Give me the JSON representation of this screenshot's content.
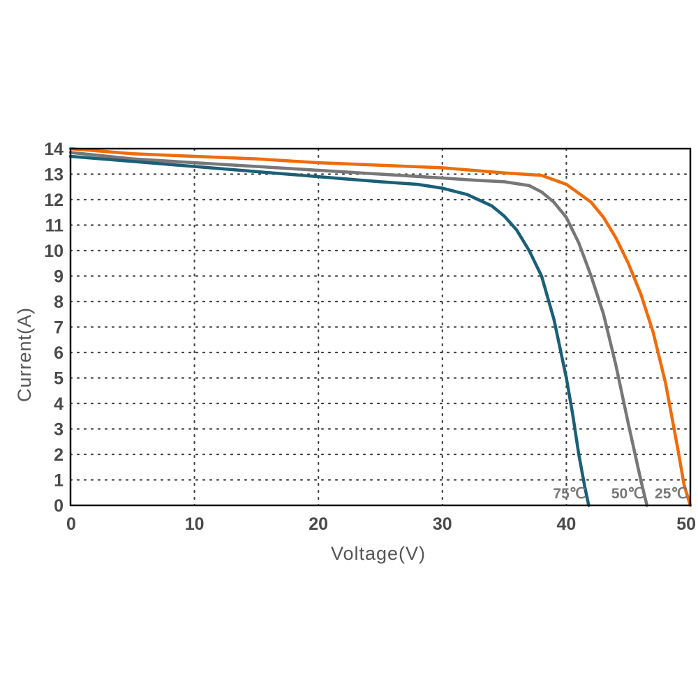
{
  "chart_data": {
    "type": "line",
    "title": "",
    "xlabel": "Voltage(V)",
    "ylabel": "Current(A)",
    "xlim": [
      0,
      50
    ],
    "ylim": [
      0,
      14
    ],
    "xticks": [
      0,
      10,
      20,
      30,
      40,
      50
    ],
    "yticks": [
      0,
      1,
      2,
      3,
      4,
      5,
      6,
      7,
      8,
      9,
      10,
      11,
      12,
      13,
      14
    ],
    "grid": true,
    "series": [
      {
        "name": "25℃",
        "color": "#ee6c0b",
        "x": [
          0,
          5,
          10,
          15,
          20,
          25,
          30,
          35,
          38,
          40,
          42,
          43,
          44,
          45,
          46,
          47,
          48,
          49,
          49.5,
          50
        ],
        "y": [
          14.0,
          13.8,
          13.7,
          13.6,
          13.45,
          13.35,
          13.25,
          13.05,
          12.95,
          12.6,
          11.9,
          11.3,
          10.5,
          9.5,
          8.3,
          6.8,
          4.8,
          2.2,
          0.8,
          0
        ]
      },
      {
        "name": "50℃",
        "color": "#777777",
        "x": [
          0,
          5,
          10,
          15,
          20,
          25,
          30,
          33,
          35,
          37,
          38,
          39,
          40,
          41,
          42,
          43,
          44,
          45,
          46,
          46.5
        ],
        "y": [
          13.85,
          13.6,
          13.45,
          13.3,
          13.15,
          13.0,
          12.85,
          12.75,
          12.7,
          12.55,
          12.3,
          11.9,
          11.3,
          10.3,
          9.0,
          7.5,
          5.5,
          3.2,
          1.0,
          0
        ]
      },
      {
        "name": "75℃",
        "color": "#1b5f77",
        "x": [
          0,
          5,
          10,
          15,
          20,
          25,
          28,
          30,
          32,
          34,
          35,
          36,
          37,
          38,
          39,
          40,
          40.5,
          41,
          41.5,
          41.8
        ],
        "y": [
          13.7,
          13.5,
          13.3,
          13.1,
          12.9,
          12.7,
          12.6,
          12.45,
          12.2,
          11.75,
          11.35,
          10.8,
          10.0,
          9.0,
          7.3,
          5.0,
          3.6,
          2.0,
          0.7,
          0
        ]
      }
    ],
    "curve_labels": [
      "75℃",
      "50℃",
      "25℃"
    ]
  }
}
